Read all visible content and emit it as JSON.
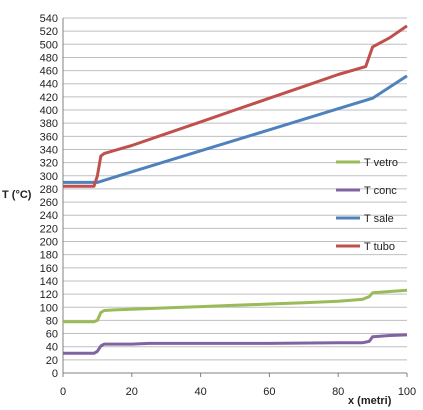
{
  "chart_data": {
    "type": "line",
    "title": "",
    "xlabel": "x (metri)",
    "ylabel": "T (°C)",
    "xlim": [
      0,
      100
    ],
    "ylim": [
      0,
      540
    ],
    "x_ticks": [
      0,
      20,
      40,
      60,
      80,
      100
    ],
    "y_ticks": [
      0,
      20,
      40,
      60,
      80,
      100,
      120,
      140,
      160,
      180,
      200,
      220,
      240,
      260,
      280,
      300,
      320,
      340,
      360,
      380,
      400,
      420,
      440,
      460,
      480,
      500,
      520,
      540
    ],
    "grid": "horizontal",
    "legend_position": "right",
    "series": [
      {
        "name": "T vetro",
        "color": "#9bbb59",
        "x": [
          0,
          9,
          10,
          11,
          12,
          15,
          20,
          30,
          40,
          50,
          60,
          70,
          80,
          87,
          89,
          90,
          95,
          100
        ],
        "y": [
          78,
          78,
          80,
          92,
          95,
          96,
          97,
          99,
          101,
          103,
          105,
          107,
          109,
          112,
          116,
          122,
          124,
          126
        ]
      },
      {
        "name": "T conc",
        "color": "#8064a2",
        "x": [
          0,
          9,
          10,
          11,
          12,
          20,
          25,
          40,
          60,
          80,
          87,
          89,
          90,
          95,
          100
        ],
        "y": [
          30,
          30,
          33,
          41,
          44,
          44,
          45,
          45,
          45,
          46,
          46,
          48,
          55,
          57,
          58
        ]
      },
      {
        "name": "T sale",
        "color": "#4f81bd",
        "x": [
          0,
          10,
          20,
          40,
          60,
          80,
          90,
          100
        ],
        "y": [
          290,
          290,
          306,
          338,
          370,
          402,
          418,
          452
        ]
      },
      {
        "name": "T tubo",
        "color": "#c0504d",
        "x": [
          0,
          9,
          10,
          11,
          12,
          20,
          30,
          40,
          50,
          60,
          70,
          80,
          88,
          90,
          95,
          100
        ],
        "y": [
          284,
          284,
          300,
          330,
          334,
          346,
          364,
          382,
          400,
          418,
          436,
          454,
          466,
          496,
          510,
          528
        ]
      }
    ]
  }
}
